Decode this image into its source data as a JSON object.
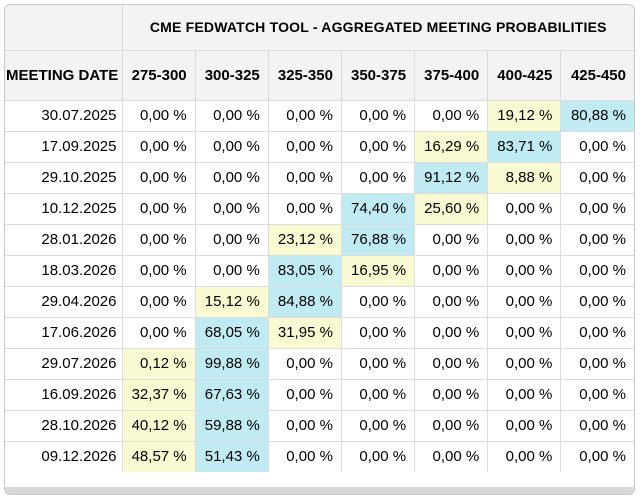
{
  "table": {
    "title": "CME FEDWATCH TOOL - AGGREGATED MEETING PROBABILITIES",
    "date_column_header": "MEETING DATE",
    "rate_columns": [
      "275-300",
      "300-325",
      "325-350",
      "350-375",
      "375-400",
      "400-425",
      "425-450"
    ],
    "rows": [
      {
        "date": "30.07.2025",
        "cells": [
          {
            "v": "0,00 %"
          },
          {
            "v": "0,00 %"
          },
          {
            "v": "0,00 %"
          },
          {
            "v": "0,00 %"
          },
          {
            "v": "0,00 %"
          },
          {
            "v": "19,12 %",
            "h": "yellow"
          },
          {
            "v": "80,88 %",
            "h": "cyan"
          }
        ]
      },
      {
        "date": "17.09.2025",
        "cells": [
          {
            "v": "0,00 %"
          },
          {
            "v": "0,00 %"
          },
          {
            "v": "0,00 %"
          },
          {
            "v": "0,00 %"
          },
          {
            "v": "16,29 %",
            "h": "yellow"
          },
          {
            "v": "83,71 %",
            "h": "cyan"
          },
          {
            "v": "0,00 %"
          }
        ]
      },
      {
        "date": "29.10.2025",
        "cells": [
          {
            "v": "0,00 %"
          },
          {
            "v": "0,00 %"
          },
          {
            "v": "0,00 %"
          },
          {
            "v": "0,00 %"
          },
          {
            "v": "91,12 %",
            "h": "cyan"
          },
          {
            "v": "8,88 %",
            "h": "yellow"
          },
          {
            "v": "0,00 %"
          }
        ]
      },
      {
        "date": "10.12.2025",
        "cells": [
          {
            "v": "0,00 %"
          },
          {
            "v": "0,00 %"
          },
          {
            "v": "0,00 %"
          },
          {
            "v": "74,40 %",
            "h": "cyan"
          },
          {
            "v": "25,60 %",
            "h": "yellow"
          },
          {
            "v": "0,00 %"
          },
          {
            "v": "0,00 %"
          }
        ]
      },
      {
        "date": "28.01.2026",
        "cells": [
          {
            "v": "0,00 %"
          },
          {
            "v": "0,00 %"
          },
          {
            "v": "23,12 %",
            "h": "yellow"
          },
          {
            "v": "76,88 %",
            "h": "cyan"
          },
          {
            "v": "0,00 %"
          },
          {
            "v": "0,00 %"
          },
          {
            "v": "0,00 %"
          }
        ]
      },
      {
        "date": "18.03.2026",
        "cells": [
          {
            "v": "0,00 %"
          },
          {
            "v": "0,00 %"
          },
          {
            "v": "83,05 %",
            "h": "cyan"
          },
          {
            "v": "16,95 %",
            "h": "yellow"
          },
          {
            "v": "0,00 %"
          },
          {
            "v": "0,00 %"
          },
          {
            "v": "0,00 %"
          }
        ]
      },
      {
        "date": "29.04.2026",
        "cells": [
          {
            "v": "0,00 %"
          },
          {
            "v": "15,12 %",
            "h": "yellow"
          },
          {
            "v": "84,88 %",
            "h": "cyan"
          },
          {
            "v": "0,00 %"
          },
          {
            "v": "0,00 %"
          },
          {
            "v": "0,00 %"
          },
          {
            "v": "0,00 %"
          }
        ]
      },
      {
        "date": "17.06.2026",
        "cells": [
          {
            "v": "0,00 %"
          },
          {
            "v": "68,05 %",
            "h": "cyan"
          },
          {
            "v": "31,95 %",
            "h": "yellow"
          },
          {
            "v": "0,00 %"
          },
          {
            "v": "0,00 %"
          },
          {
            "v": "0,00 %"
          },
          {
            "v": "0,00 %"
          }
        ]
      },
      {
        "date": "29.07.2026",
        "cells": [
          {
            "v": "0,12 %",
            "h": "yellow"
          },
          {
            "v": "99,88 %",
            "h": "cyan"
          },
          {
            "v": "0,00 %"
          },
          {
            "v": "0,00 %"
          },
          {
            "v": "0,00 %"
          },
          {
            "v": "0,00 %"
          },
          {
            "v": "0,00 %"
          }
        ]
      },
      {
        "date": "16.09.2026",
        "cells": [
          {
            "v": "32,37 %",
            "h": "yellow"
          },
          {
            "v": "67,63 %",
            "h": "cyan"
          },
          {
            "v": "0,00 %"
          },
          {
            "v": "0,00 %"
          },
          {
            "v": "0,00 %"
          },
          {
            "v": "0,00 %"
          },
          {
            "v": "0,00 %"
          }
        ]
      },
      {
        "date": "28.10.2026",
        "cells": [
          {
            "v": "40,12 %",
            "h": "yellow"
          },
          {
            "v": "59,88 %",
            "h": "cyan"
          },
          {
            "v": "0,00 %"
          },
          {
            "v": "0,00 %"
          },
          {
            "v": "0,00 %"
          },
          {
            "v": "0,00 %"
          },
          {
            "v": "0,00 %"
          }
        ]
      },
      {
        "date": "09.12.2026",
        "cells": [
          {
            "v": "48,57 %",
            "h": "yellow"
          },
          {
            "v": "51,43 %",
            "h": "cyan"
          },
          {
            "v": "0,00 %"
          },
          {
            "v": "0,00 %"
          },
          {
            "v": "0,00 %"
          },
          {
            "v": "0,00 %"
          },
          {
            "v": "0,00 %"
          }
        ]
      }
    ]
  },
  "colors": {
    "yellow": "#fafad2",
    "cyan": "#c1ebf3",
    "header_bg": "#f3f3f3"
  }
}
